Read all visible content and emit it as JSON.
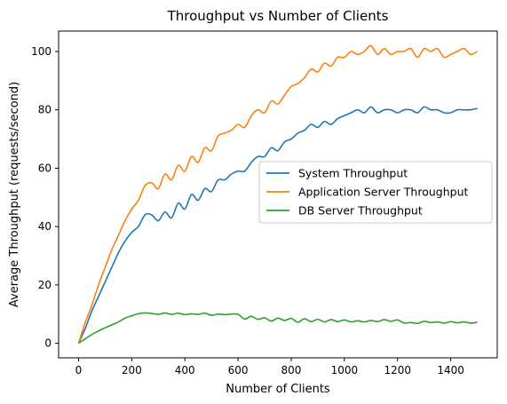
{
  "chart_data": {
    "type": "line",
    "title": "Throughput vs Number of Clients",
    "xlabel": "Number of Clients",
    "ylabel": "Average Throughput (requests/second)",
    "xlim": [
      -75,
      1575
    ],
    "ylim": [
      -5,
      107
    ],
    "xticks": [
      0,
      200,
      400,
      600,
      800,
      1000,
      1200,
      1400
    ],
    "yticks": [
      0,
      20,
      40,
      60,
      80,
      100
    ],
    "legend_position": "center-right",
    "grid": false,
    "series": [
      {
        "name": "System Throughput",
        "color": "#1f77b4",
        "x": [
          0,
          25,
          50,
          75,
          100,
          125,
          150,
          175,
          200,
          225,
          250,
          275,
          300,
          325,
          350,
          375,
          400,
          425,
          450,
          475,
          500,
          525,
          550,
          575,
          600,
          625,
          650,
          675,
          700,
          725,
          750,
          775,
          800,
          825,
          850,
          875,
          900,
          925,
          950,
          975,
          1000,
          1025,
          1050,
          1075,
          1100,
          1125,
          1150,
          1175,
          1200,
          1225,
          1250,
          1275,
          1300,
          1325,
          1350,
          1375,
          1400,
          1425,
          1450,
          1475,
          1500
        ],
        "y": [
          0,
          5,
          11,
          16,
          21,
          26,
          31,
          35,
          38,
          40,
          44,
          44,
          42,
          45,
          43,
          48,
          46,
          51,
          49,
          53,
          52,
          56,
          56,
          58,
          59,
          59,
          62,
          64,
          64,
          67,
          66,
          69,
          70,
          72,
          73,
          75,
          74,
          76,
          75,
          77,
          78,
          79,
          80,
          79,
          81,
          79,
          80,
          80,
          79,
          80,
          80,
          79,
          81,
          80,
          80,
          79,
          79,
          80,
          80,
          80,
          80.5
        ]
      },
      {
        "name": "Application Server Throughput",
        "color": "#ff7f0e",
        "x": [
          0,
          25,
          50,
          75,
          100,
          125,
          150,
          175,
          200,
          225,
          250,
          275,
          300,
          325,
          350,
          375,
          400,
          425,
          450,
          475,
          500,
          525,
          550,
          575,
          600,
          625,
          650,
          675,
          700,
          725,
          750,
          775,
          800,
          825,
          850,
          875,
          900,
          925,
          950,
          975,
          1000,
          1025,
          1050,
          1075,
          1100,
          1125,
          1150,
          1175,
          1200,
          1225,
          1250,
          1275,
          1300,
          1325,
          1350,
          1375,
          1400,
          1425,
          1450,
          1475,
          1500
        ],
        "y": [
          0,
          7,
          13,
          20,
          26,
          32,
          37,
          42,
          46,
          49,
          54,
          55,
          53,
          58,
          56,
          61,
          59,
          64,
          62,
          67,
          66,
          71,
          72,
          73,
          75,
          74,
          78,
          80,
          79,
          83,
          82,
          85,
          88,
          89,
          91,
          94,
          93,
          96,
          95,
          98,
          98,
          100,
          99,
          100,
          102,
          99,
          101,
          99,
          100,
          100,
          101,
          98,
          101,
          100,
          101,
          98,
          99,
          100,
          101,
          99,
          100
        ]
      },
      {
        "name": "DB Server Throughput",
        "color": "#2ca02c",
        "x": [
          0,
          25,
          50,
          75,
          100,
          125,
          150,
          175,
          200,
          225,
          250,
          275,
          300,
          325,
          350,
          375,
          400,
          425,
          450,
          475,
          500,
          525,
          550,
          575,
          600,
          625,
          650,
          675,
          700,
          725,
          750,
          775,
          800,
          825,
          850,
          875,
          900,
          925,
          950,
          975,
          1000,
          1025,
          1050,
          1075,
          1100,
          1125,
          1150,
          1175,
          1200,
          1225,
          1250,
          1275,
          1300,
          1325,
          1350,
          1375,
          1400,
          1425,
          1450,
          1475,
          1500
        ],
        "y": [
          0,
          1.5,
          3,
          4.2,
          5.3,
          6.3,
          7.3,
          8.6,
          9.4,
          10.1,
          10.4,
          10.2,
          9.9,
          10.4,
          9.9,
          10.3,
          9.8,
          10.1,
          9.9,
          10.3,
          9.6,
          10.0,
          9.8,
          10.0,
          9.9,
          8.3,
          9.2,
          8.2,
          8.7,
          7.6,
          8.6,
          7.8,
          8.5,
          7.2,
          8.4,
          7.4,
          8.2,
          7.3,
          8.1,
          7.4,
          8.0,
          7.3,
          7.7,
          7.3,
          7.8,
          7.4,
          8.1,
          7.5,
          8.0,
          6.9,
          7.1,
          6.8,
          7.5,
          7.1,
          7.3,
          6.9,
          7.4,
          7.0,
          7.3,
          6.9,
          7.2
        ]
      }
    ]
  }
}
